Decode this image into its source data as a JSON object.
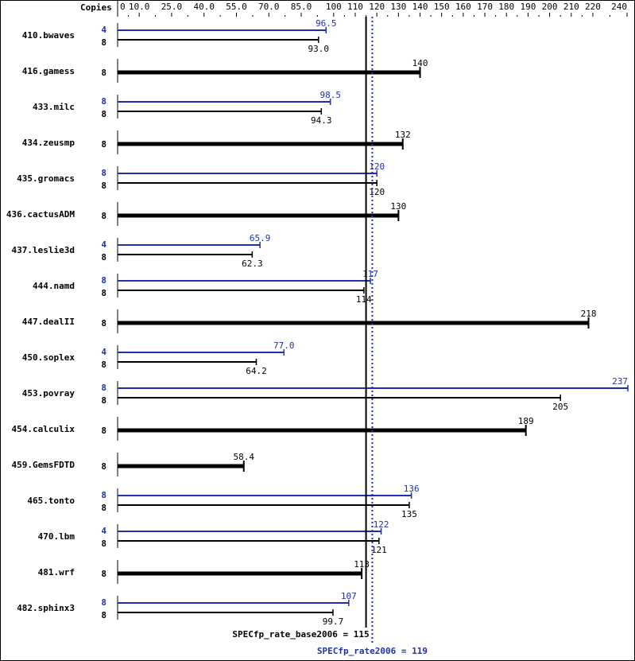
{
  "chart_data": {
    "type": "bar",
    "orientation": "horizontal",
    "xlim": [
      0,
      240
    ],
    "axis_header": "Copies",
    "ticks": [
      "0",
      "10.0",
      "25.0",
      "40.0",
      "55.0",
      "70.0",
      "85.0",
      "100",
      "110",
      "120",
      "130",
      "140",
      "150",
      "160",
      "170",
      "180",
      "190",
      "200",
      "210",
      "220",
      "240"
    ],
    "tick_values": [
      0,
      10,
      25,
      40,
      55,
      70,
      85,
      100,
      110,
      120,
      130,
      140,
      150,
      160,
      170,
      180,
      190,
      200,
      210,
      220,
      240
    ],
    "colors": {
      "peak": "#1f2fb0",
      "base": "#000000"
    },
    "series": [
      {
        "name": "SPECfp_rate2006",
        "color": "#1f2fb0"
      },
      {
        "name": "SPECfp_rate_base2006",
        "color": "#000000"
      }
    ],
    "benchmarks": [
      {
        "name": "410.bwaves",
        "peak_copies": "4",
        "peak": 96.5,
        "peak_label": "96.5",
        "base_copies": "8",
        "base": 93.0,
        "base_label": "93.0"
      },
      {
        "name": "416.gamess",
        "base_copies": "8",
        "base": 140,
        "base_label": "140"
      },
      {
        "name": "433.milc",
        "peak_copies": "8",
        "peak": 98.5,
        "peak_label": "98.5",
        "base_copies": "8",
        "base": 94.3,
        "base_label": "94.3"
      },
      {
        "name": "434.zeusmp",
        "base_copies": "8",
        "base": 132,
        "base_label": "132"
      },
      {
        "name": "435.gromacs",
        "peak_copies": "8",
        "peak": 120,
        "peak_label": "120",
        "base_copies": "8",
        "base": 120,
        "base_label": "120"
      },
      {
        "name": "436.cactusADM",
        "base_copies": "8",
        "base": 130,
        "base_label": "130"
      },
      {
        "name": "437.leslie3d",
        "peak_copies": "4",
        "peak": 65.9,
        "peak_label": "65.9",
        "base_copies": "8",
        "base": 62.3,
        "base_label": "62.3"
      },
      {
        "name": "444.namd",
        "peak_copies": "8",
        "peak": 117,
        "peak_label": "117",
        "base_copies": "8",
        "base": 114,
        "base_label": "114"
      },
      {
        "name": "447.dealII",
        "base_copies": "8",
        "base": 218,
        "base_label": "218"
      },
      {
        "name": "450.soplex",
        "peak_copies": "4",
        "peak": 77.0,
        "peak_label": "77.0",
        "base_copies": "8",
        "base": 64.2,
        "base_label": "64.2"
      },
      {
        "name": "453.povray",
        "peak_copies": "8",
        "peak": 237,
        "peak_label": "237",
        "base_copies": "8",
        "base": 205,
        "base_label": "205"
      },
      {
        "name": "454.calculix",
        "base_copies": "8",
        "base": 189,
        "base_label": "189"
      },
      {
        "name": "459.GemsFDTD",
        "base_copies": "8",
        "base": 58.4,
        "base_label": "58.4"
      },
      {
        "name": "465.tonto",
        "peak_copies": "8",
        "peak": 136,
        "peak_label": "136",
        "base_copies": "8",
        "base": 135,
        "base_label": "135"
      },
      {
        "name": "470.lbm",
        "peak_copies": "4",
        "peak": 122,
        "peak_label": "122",
        "base_copies": "8",
        "base": 121,
        "base_label": "121"
      },
      {
        "name": "481.wrf",
        "base_copies": "8",
        "base": 113,
        "base_label": "113"
      },
      {
        "name": "482.sphinx3",
        "peak_copies": "8",
        "peak": 107,
        "peak_label": "107",
        "base_copies": "8",
        "base": 99.7,
        "base_label": "99.7"
      }
    ],
    "reference_lines": [
      {
        "label": "SPECfp_rate_base2006 = 115",
        "value": 115,
        "style": "solid",
        "color": "#000000"
      },
      {
        "label": "SPECfp_rate2006 = 119",
        "value": 119,
        "style": "dotted",
        "color": "#1f2fb0"
      }
    ]
  }
}
